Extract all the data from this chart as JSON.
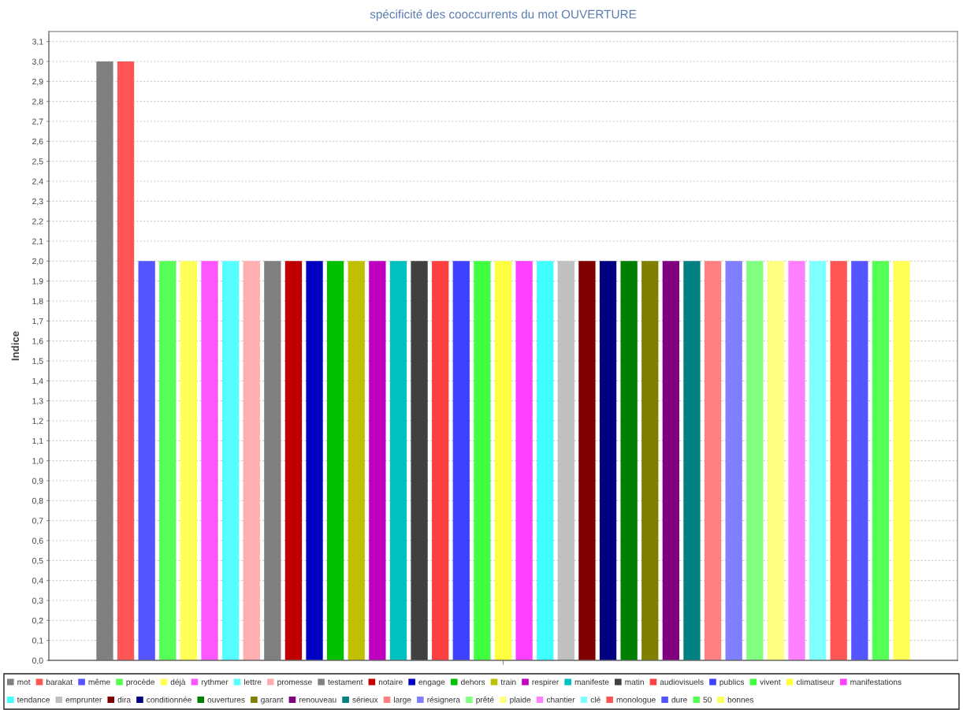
{
  "chart_data": {
    "type": "bar",
    "title": "spécificité des cooccurrents du mot OUVERTURE",
    "ylabel": "Indice",
    "categories": [
      null
    ],
    "series": [
      {
        "name": "mot",
        "color": "#808080",
        "values": [
          3.0
        ]
      },
      {
        "name": "barakat",
        "color": "#ff5555",
        "values": [
          3.0
        ]
      },
      {
        "name": "même",
        "color": "#5555ff",
        "values": [
          2.0
        ]
      },
      {
        "name": "procède",
        "color": "#55ff55",
        "values": [
          2.0
        ]
      },
      {
        "name": "déjà",
        "color": "#ffff55",
        "values": [
          2.0
        ]
      },
      {
        "name": "rythmer",
        "color": "#ff55ff",
        "values": [
          2.0
        ]
      },
      {
        "name": "lettre",
        "color": "#55ffff",
        "values": [
          2.0
        ]
      },
      {
        "name": "promesse",
        "color": "#ffafaf",
        "values": [
          2.0
        ]
      },
      {
        "name": "testament",
        "color": "#808080",
        "values": [
          2.0
        ]
      },
      {
        "name": "notaire",
        "color": "#c00000",
        "values": [
          2.0
        ]
      },
      {
        "name": "engage",
        "color": "#0000c0",
        "values": [
          2.0
        ]
      },
      {
        "name": "dehors",
        "color": "#00c000",
        "values": [
          2.0
        ]
      },
      {
        "name": "train",
        "color": "#c0c000",
        "values": [
          2.0
        ]
      },
      {
        "name": "respirer",
        "color": "#c000c0",
        "values": [
          2.0
        ]
      },
      {
        "name": "manifeste",
        "color": "#00c0c0",
        "values": [
          2.0
        ]
      },
      {
        "name": "matin",
        "color": "#404040",
        "values": [
          2.0
        ]
      },
      {
        "name": "audiovisuels",
        "color": "#ff4040",
        "values": [
          2.0
        ]
      },
      {
        "name": "publics",
        "color": "#4040ff",
        "values": [
          2.0
        ]
      },
      {
        "name": "vivent",
        "color": "#40ff40",
        "values": [
          2.0
        ]
      },
      {
        "name": "climatiseur",
        "color": "#ffff40",
        "values": [
          2.0
        ]
      },
      {
        "name": "manifestations",
        "color": "#ff40ff",
        "values": [
          2.0
        ]
      },
      {
        "name": "tendance",
        "color": "#40ffff",
        "values": [
          2.0
        ]
      },
      {
        "name": "emprunter",
        "color": "#c0c0c0",
        "values": [
          2.0
        ]
      },
      {
        "name": "dira",
        "color": "#800000",
        "values": [
          2.0
        ]
      },
      {
        "name": "conditionnée",
        "color": "#000080",
        "values": [
          2.0
        ]
      },
      {
        "name": "ouvertures",
        "color": "#008000",
        "values": [
          2.0
        ]
      },
      {
        "name": "garant",
        "color": "#808000",
        "values": [
          2.0
        ]
      },
      {
        "name": "renouveau",
        "color": "#800080",
        "values": [
          2.0
        ]
      },
      {
        "name": "sérieux",
        "color": "#008080",
        "values": [
          2.0
        ]
      },
      {
        "name": "large",
        "color": "#ff8080",
        "values": [
          2.0
        ]
      },
      {
        "name": "résignera",
        "color": "#8080ff",
        "values": [
          2.0
        ]
      },
      {
        "name": "prêté",
        "color": "#80ff80",
        "values": [
          2.0
        ]
      },
      {
        "name": "plaide",
        "color": "#ffff80",
        "values": [
          2.0
        ]
      },
      {
        "name": "chantier",
        "color": "#ff80ff",
        "values": [
          2.0
        ]
      },
      {
        "name": "clé",
        "color": "#80ffff",
        "values": [
          2.0
        ]
      },
      {
        "name": "monologue",
        "color": "#ff5555",
        "values": [
          2.0
        ]
      },
      {
        "name": "dure",
        "color": "#5555ff",
        "values": [
          2.0
        ]
      },
      {
        "name": "50",
        "color": "#55ff55",
        "values": [
          2.0
        ]
      },
      {
        "name": "bonnes",
        "color": "#ffff55",
        "values": [
          2.0
        ]
      }
    ],
    "ylim": [
      0,
      3.15
    ],
    "yticks": [
      {
        "value": 0.0,
        "label": "0,0"
      },
      {
        "value": 0.1,
        "label": "0,1"
      },
      {
        "value": 0.2,
        "label": "0,2"
      },
      {
        "value": 0.3,
        "label": "0,3"
      },
      {
        "value": 0.4,
        "label": "0,4"
      },
      {
        "value": 0.5,
        "label": "0,5"
      },
      {
        "value": 0.6,
        "label": "0,6"
      },
      {
        "value": 0.7,
        "label": "0,7"
      },
      {
        "value": 0.8,
        "label": "0,8"
      },
      {
        "value": 0.9,
        "label": "0,9"
      },
      {
        "value": 1.0,
        "label": "1,0"
      },
      {
        "value": 1.1,
        "label": "1,1"
      },
      {
        "value": 1.2,
        "label": "1,2"
      },
      {
        "value": 1.3,
        "label": "1,3"
      },
      {
        "value": 1.4,
        "label": "1,4"
      },
      {
        "value": 1.5,
        "label": "1,5"
      },
      {
        "value": 1.6,
        "label": "1,6"
      },
      {
        "value": 1.7,
        "label": "1,7"
      },
      {
        "value": 1.8,
        "label": "1,8"
      },
      {
        "value": 1.9,
        "label": "1,9"
      },
      {
        "value": 2.0,
        "label": "2,0"
      },
      {
        "value": 2.1,
        "label": "2,1"
      },
      {
        "value": 2.2,
        "label": "2,2"
      },
      {
        "value": 2.3,
        "label": "2,3"
      },
      {
        "value": 2.4,
        "label": "2,4"
      },
      {
        "value": 2.5,
        "label": "2,5"
      },
      {
        "value": 2.6,
        "label": "2,6"
      },
      {
        "value": 2.7,
        "label": "2,7"
      },
      {
        "value": 2.8,
        "label": "2,8"
      },
      {
        "value": 2.9,
        "label": "2,9"
      },
      {
        "value": 3.0,
        "label": "3,0"
      },
      {
        "value": 3.1,
        "label": "3,1"
      }
    ],
    "grid": "y",
    "legend": "bottom",
    "tick_labels": "y"
  }
}
